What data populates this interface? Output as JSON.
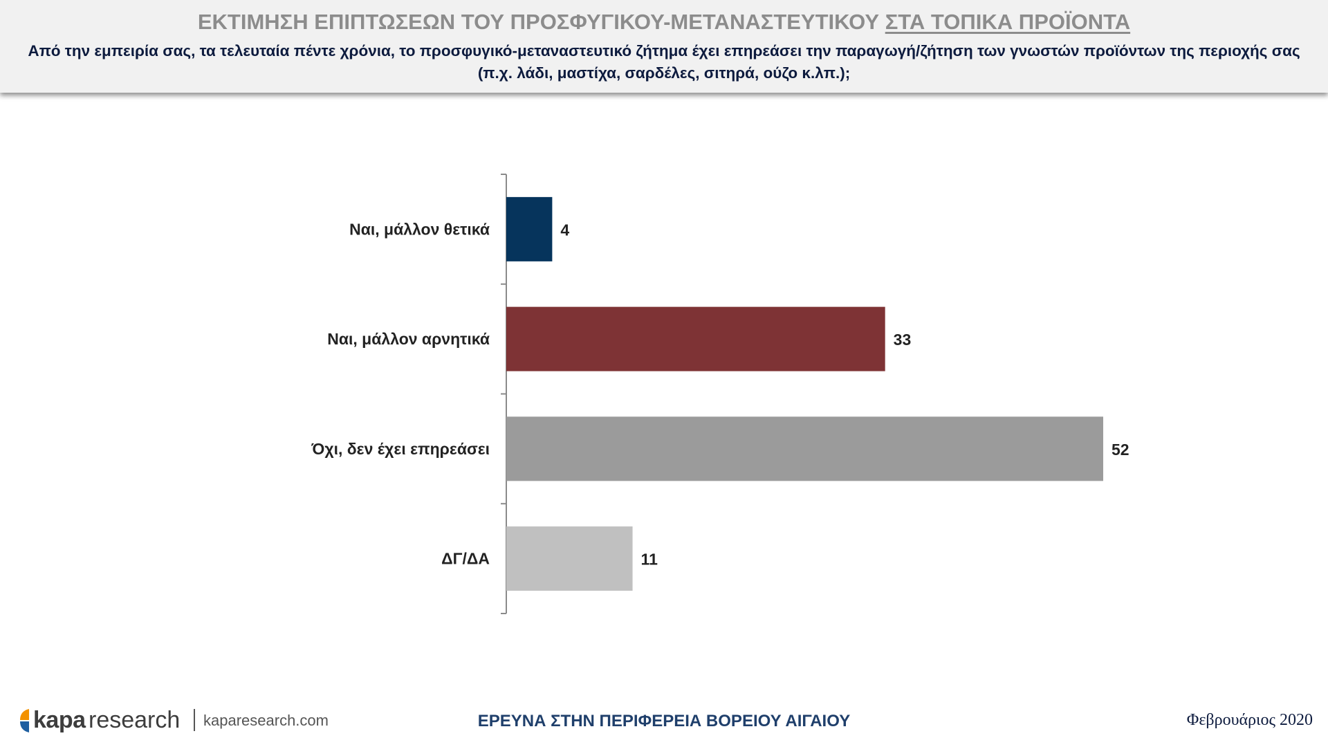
{
  "header": {
    "title_part1": "ΕΚΤΙΜΗΣΗ ΕΠΙΠΤΩΣΕΩΝ ΤΟΥ ΠΡΟΣΦΥΓΙΚΟΥ-ΜΕΤΑΝΑΣΤΕΥΤΙΚΟΥ",
    "title_part2": "ΣΤΑ ΤΟΠΙΚΑ ΠΡΟΪΟΝΤΑ",
    "question_line1": "Από την εμπειρία σας, τα τελευταία πέντε χρόνια, το προσφυγικό-μεταναστευτικό ζήτημα έχει επηρεάσει την παραγωγή/ζήτηση των γνωστών προϊόντων της περιοχής σας",
    "question_line2": "(π.χ. λάδι, μαστίχα, σαρδέλες, σιτηρά, ούζο κ.λπ.);"
  },
  "chart_data": {
    "type": "bar",
    "orientation": "horizontal",
    "categories": [
      "Ναι, μάλλον θετικά",
      "Ναι, μάλλον αρνητικά",
      "Όχι, δεν έχει επηρεάσει",
      "ΔΓ/ΔΑ"
    ],
    "values": [
      4,
      33,
      52,
      11
    ],
    "colors": [
      "#06345c",
      "#7e3335",
      "#9b9b9b",
      "#c0c0c0"
    ],
    "xlim": [
      0,
      52
    ],
    "grid": false,
    "legend": false,
    "data_labels": true
  },
  "footer": {
    "logo_kapa": "kapa",
    "logo_research": "research",
    "logo_url": "kaparesearch.com",
    "center_text": "ΕΡΕΥΝΑ ΣΤΗΝ ΠΕΡΙΦΕΡΕΙΑ ΒΟΡΕΙΟΥ ΑΙΓΑΙΟΥ",
    "date": "Φεβρουάριος 2020"
  },
  "colors": {
    "title_gray": "#8c8c8c",
    "question_navy": "#0d1b3e",
    "footer_blue": "#1f3f6b",
    "logo_orange": "#f39200",
    "logo_blue": "#1f5fa0"
  }
}
